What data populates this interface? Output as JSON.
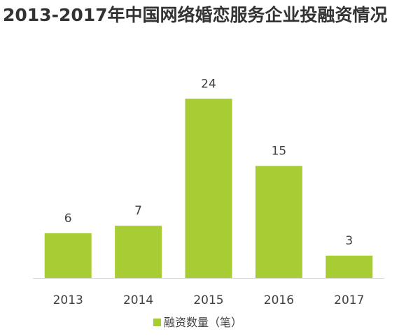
{
  "title": "2013-2017年中国网络婚恋服务企业投融资情况",
  "chart_data": {
    "type": "bar",
    "title": "2013-2017年中国网络婚恋服务企业投融资情况",
    "categories": [
      "2013",
      "2014",
      "2015",
      "2016",
      "2017"
    ],
    "series": [
      {
        "name": "融资数量（笔）",
        "values": [
          6,
          7,
          24,
          15,
          3
        ],
        "color": "#a8cc34"
      }
    ],
    "data_labels": true,
    "xlabel": "",
    "ylabel": "",
    "ylim": [
      0,
      26
    ],
    "grid": false,
    "legend": "bottom"
  }
}
